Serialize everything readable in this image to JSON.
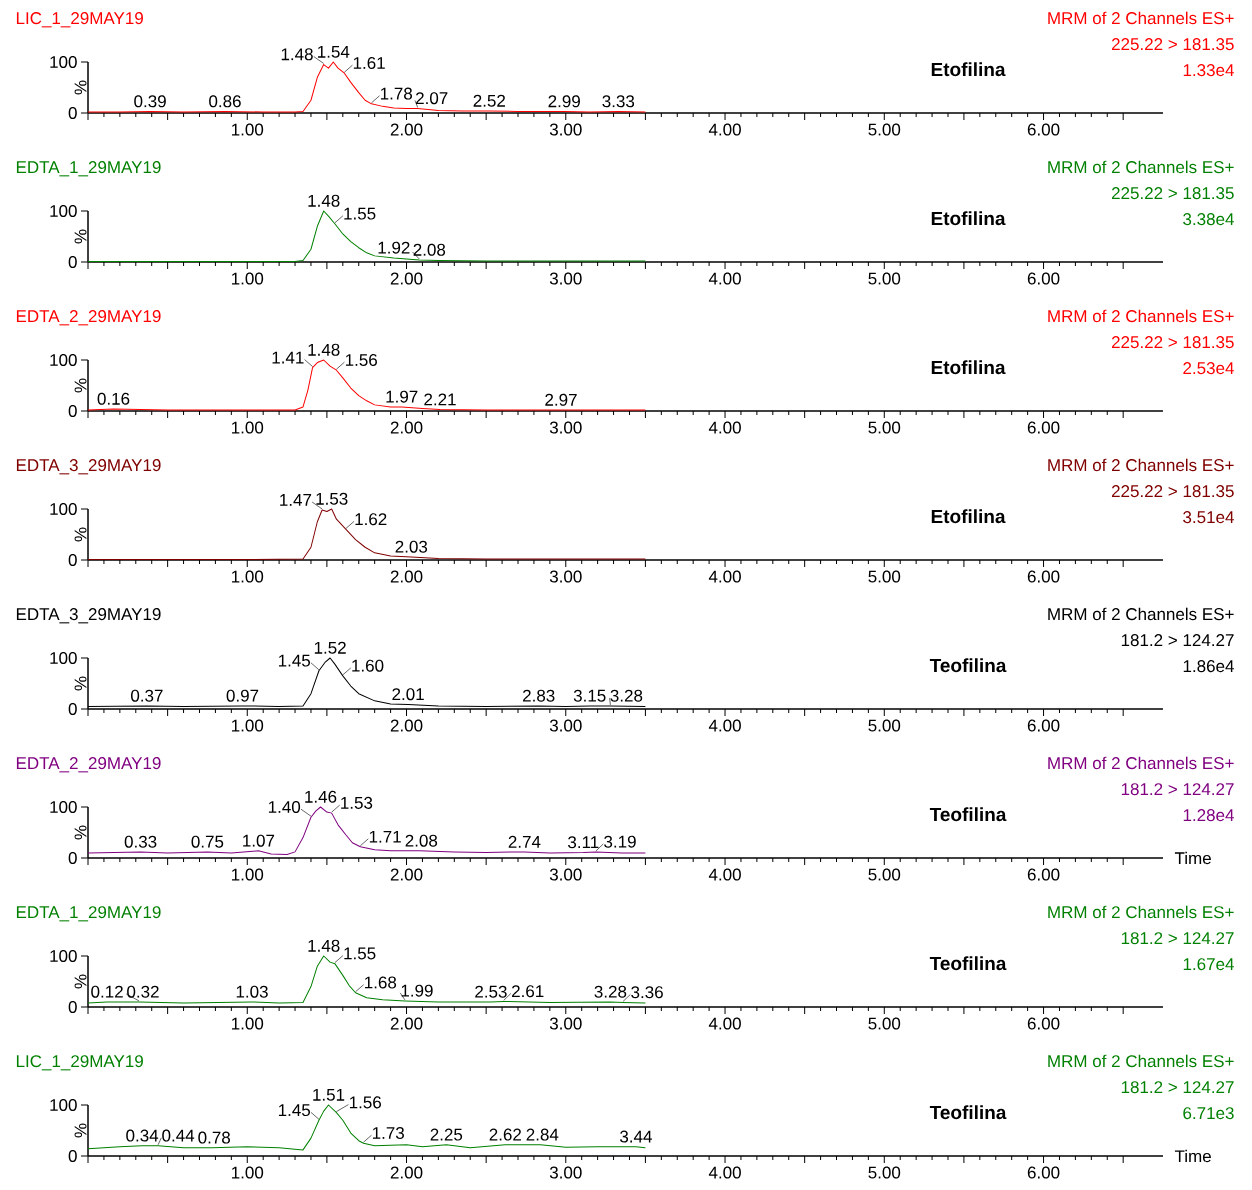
{
  "chart_data": [
    {
      "type": "line",
      "title": "LIC_1_29MAY19",
      "subtitle": "MRM of 2 Channels ES+",
      "ylabel": "%",
      "xlim": [
        0,
        6.75
      ],
      "ylim": [
        0,
        100
      ],
      "yticks": [
        0,
        100
      ],
      "xticks": [
        {
          "value": 0,
          "label": null
        },
        {
          "value": 0.5,
          "label": null
        },
        {
          "value": 1,
          "label": "1.00"
        },
        {
          "value": 1.5,
          "label": null
        },
        {
          "value": 2,
          "label": "2.00"
        },
        {
          "value": 2.5,
          "label": null
        },
        {
          "value": 3,
          "label": "3.00"
        },
        {
          "value": 3.5,
          "label": null
        },
        {
          "value": 4,
          "label": "4.00"
        },
        {
          "value": 4.5,
          "label": null
        },
        {
          "value": 5,
          "label": "5.00"
        },
        {
          "value": 5.5,
          "label": null
        },
        {
          "value": 6,
          "label": "6.00"
        },
        {
          "value": 6.5,
          "label": null
        }
      ],
      "series": [
        {
          "color": "#ff0000",
          "x": [
            0,
            0.2,
            0.39,
            0.6,
            0.86,
            1.1,
            1.3,
            1.35,
            1.4,
            1.44,
            1.48,
            1.51,
            1.54,
            1.57,
            1.61,
            1.65,
            1.7,
            1.74,
            1.78,
            1.85,
            1.92,
            2.0,
            2.07,
            2.2,
            2.35,
            2.52,
            2.7,
            2.99,
            3.15,
            3.33,
            3.5
          ],
          "values": [
            2,
            2,
            3,
            2,
            3,
            2,
            2,
            3,
            25,
            70,
            95,
            88,
            100,
            88,
            78,
            60,
            40,
            25,
            18,
            13,
            10,
            9,
            9,
            5,
            4,
            4,
            3,
            3,
            2,
            3,
            2
          ]
        }
      ],
      "annotations": [
        "225.22 > 181.35",
        "1.33e4",
        "Etofilina",
        {
          "text": "0.39",
          "x": 0.39,
          "y": 3
        },
        {
          "text": "0.86",
          "x": 0.86,
          "y": 3
        },
        {
          "text": "1.48",
          "x": 1.48,
          "y": 95
        },
        {
          "text": "1.54",
          "x": 1.54,
          "y": 100
        },
        {
          "text": "1.61",
          "x": 1.61,
          "y": 78
        },
        {
          "text": "1.78",
          "x": 1.78,
          "y": 18
        },
        {
          "text": "2.07",
          "x": 2.07,
          "y": 9
        },
        {
          "text": "2.52",
          "x": 2.52,
          "y": 4
        },
        {
          "text": "2.99",
          "x": 2.99,
          "y": 3
        },
        {
          "text": "3.33",
          "x": 3.33,
          "y": 3
        }
      ]
    },
    {
      "type": "line",
      "title": "EDTA_1_29MAY19",
      "subtitle": "MRM of 2 Channels ES+",
      "ylabel": "%",
      "xlim": [
        0,
        6.75
      ],
      "ylim": [
        0,
        100
      ],
      "yticks": [
        0,
        100
      ],
      "xticks": [
        {
          "value": 0,
          "label": null
        },
        {
          "value": 0.5,
          "label": null
        },
        {
          "value": 1,
          "label": "1.00"
        },
        {
          "value": 1.5,
          "label": null
        },
        {
          "value": 2,
          "label": "2.00"
        },
        {
          "value": 2.5,
          "label": null
        },
        {
          "value": 3,
          "label": "3.00"
        },
        {
          "value": 3.5,
          "label": null
        },
        {
          "value": 4,
          "label": "4.00"
        },
        {
          "value": 4.5,
          "label": null
        },
        {
          "value": 5,
          "label": "5.00"
        },
        {
          "value": 5.5,
          "label": null
        },
        {
          "value": 6,
          "label": "6.00"
        },
        {
          "value": 6.5,
          "label": null
        }
      ],
      "series": [
        {
          "color": "#008000",
          "x": [
            0,
            0.5,
            1.0,
            1.3,
            1.35,
            1.4,
            1.44,
            1.48,
            1.51,
            1.55,
            1.6,
            1.65,
            1.7,
            1.75,
            1.8,
            1.92,
            2.0,
            2.08,
            2.2,
            2.5,
            3.0,
            3.5
          ],
          "values": [
            1,
            1,
            1,
            1,
            3,
            25,
            70,
            100,
            90,
            75,
            55,
            40,
            28,
            18,
            12,
            8,
            6,
            4,
            3,
            2,
            2,
            2
          ]
        }
      ],
      "annotations": [
        "225.22 > 181.35",
        "3.38e4",
        "Etofilina",
        {
          "text": "1.48",
          "x": 1.48,
          "y": 100
        },
        {
          "text": "1.55",
          "x": 1.55,
          "y": 75
        },
        {
          "text": "1.92",
          "x": 1.92,
          "y": 8
        },
        {
          "text": "2.08",
          "x": 2.08,
          "y": 4
        }
      ]
    },
    {
      "type": "line",
      "title": "EDTA_2_29MAY19",
      "subtitle": "MRM of 2 Channels ES+",
      "ylabel": "%",
      "xlim": [
        0,
        6.75
      ],
      "ylim": [
        0,
        100
      ],
      "yticks": [
        0,
        100
      ],
      "xticks": [
        {
          "value": 0,
          "label": null
        },
        {
          "value": 0.5,
          "label": null
        },
        {
          "value": 1,
          "label": "1.00"
        },
        {
          "value": 1.5,
          "label": null
        },
        {
          "value": 2,
          "label": "2.00"
        },
        {
          "value": 2.5,
          "label": null
        },
        {
          "value": 3,
          "label": "3.00"
        },
        {
          "value": 3.5,
          "label": null
        },
        {
          "value": 4,
          "label": "4.00"
        },
        {
          "value": 4.5,
          "label": null
        },
        {
          "value": 5,
          "label": "5.00"
        },
        {
          "value": 5.5,
          "label": null
        },
        {
          "value": 6,
          "label": "6.00"
        },
        {
          "value": 6.5,
          "label": null
        }
      ],
      "series": [
        {
          "color": "#ff0000",
          "x": [
            0,
            0.16,
            0.5,
            1.0,
            1.3,
            1.35,
            1.38,
            1.41,
            1.44,
            1.48,
            1.52,
            1.56,
            1.6,
            1.65,
            1.7,
            1.75,
            1.8,
            1.9,
            1.97,
            2.1,
            2.21,
            2.5,
            2.97,
            3.5
          ],
          "values": [
            2,
            4,
            2,
            2,
            2,
            8,
            40,
            85,
            95,
            100,
            88,
            80,
            65,
            45,
            30,
            20,
            12,
            8,
            8,
            5,
            3,
            2,
            2,
            2
          ]
        }
      ],
      "annotations": [
        "225.22 > 181.35",
        "2.53e4",
        "Etofilina",
        {
          "text": "0.16",
          "x": 0.16,
          "y": 4
        },
        {
          "text": "1.41",
          "x": 1.41,
          "y": 85
        },
        {
          "text": "1.48",
          "x": 1.48,
          "y": 100
        },
        {
          "text": "1.56",
          "x": 1.56,
          "y": 80
        },
        {
          "text": "1.97",
          "x": 1.97,
          "y": 8
        },
        {
          "text": "2.21",
          "x": 2.21,
          "y": 3
        },
        {
          "text": "2.97",
          "x": 2.97,
          "y": 2
        }
      ]
    },
    {
      "type": "line",
      "title": "EDTA_3_29MAY19",
      "subtitle": "MRM of 2 Channels ES+",
      "ylabel": "%",
      "xlim": [
        0,
        6.75
      ],
      "ylim": [
        0,
        100
      ],
      "yticks": [
        0,
        100
      ],
      "xticks": [
        {
          "value": 0,
          "label": null
        },
        {
          "value": 0.5,
          "label": null
        },
        {
          "value": 1,
          "label": "1.00"
        },
        {
          "value": 1.5,
          "label": null
        },
        {
          "value": 2,
          "label": "2.00"
        },
        {
          "value": 2.5,
          "label": null
        },
        {
          "value": 3,
          "label": "3.00"
        },
        {
          "value": 3.5,
          "label": null
        },
        {
          "value": 4,
          "label": "4.00"
        },
        {
          "value": 4.5,
          "label": null
        },
        {
          "value": 5,
          "label": "5.00"
        },
        {
          "value": 5.5,
          "label": null
        },
        {
          "value": 6,
          "label": "6.00"
        },
        {
          "value": 6.5,
          "label": null
        }
      ],
      "series": [
        {
          "color": "#800000",
          "x": [
            0,
            0.5,
            1.0,
            1.35,
            1.4,
            1.44,
            1.47,
            1.5,
            1.53,
            1.56,
            1.62,
            1.68,
            1.74,
            1.8,
            1.9,
            2.03,
            2.2,
            2.5,
            3.0,
            3.5
          ],
          "values": [
            1,
            1,
            1,
            2,
            25,
            75,
            98,
            95,
            100,
            80,
            60,
            40,
            25,
            14,
            8,
            6,
            3,
            2,
            2,
            2
          ]
        }
      ],
      "annotations": [
        "225.22 > 181.35",
        "3.51e4",
        "Etofilina",
        {
          "text": "1.47",
          "x": 1.47,
          "y": 98
        },
        {
          "text": "1.53",
          "x": 1.53,
          "y": 100
        },
        {
          "text": "1.62",
          "x": 1.62,
          "y": 60
        },
        {
          "text": "2.03",
          "x": 2.03,
          "y": 6
        }
      ]
    },
    {
      "type": "line",
      "title": "EDTA_3_29MAY19",
      "subtitle": "MRM of 2 Channels ES+",
      "ylabel": "%",
      "xlim": [
        0,
        6.75
      ],
      "ylim": [
        0,
        100
      ],
      "yticks": [
        0,
        100
      ],
      "xticks": [
        {
          "value": 0,
          "label": null
        },
        {
          "value": 0.5,
          "label": null
        },
        {
          "value": 1,
          "label": "1.00"
        },
        {
          "value": 1.5,
          "label": null
        },
        {
          "value": 2,
          "label": "2.00"
        },
        {
          "value": 2.5,
          "label": null
        },
        {
          "value": 3,
          "label": "3.00"
        },
        {
          "value": 3.5,
          "label": null
        },
        {
          "value": 4,
          "label": "4.00"
        },
        {
          "value": 4.5,
          "label": null
        },
        {
          "value": 5,
          "label": "5.00"
        },
        {
          "value": 5.5,
          "label": null
        },
        {
          "value": 6,
          "label": "6.00"
        },
        {
          "value": 6.5,
          "label": null
        }
      ],
      "series": [
        {
          "color": "#000000",
          "x": [
            0,
            0.37,
            0.6,
            0.97,
            1.2,
            1.35,
            1.4,
            1.45,
            1.49,
            1.52,
            1.55,
            1.6,
            1.65,
            1.7,
            1.8,
            1.9,
            2.01,
            2.2,
            2.5,
            2.83,
            3.0,
            3.15,
            3.28,
            3.5
          ],
          "values": [
            5,
            6,
            5,
            6,
            5,
            6,
            30,
            75,
            92,
            100,
            88,
            65,
            45,
            30,
            16,
            10,
            9,
            6,
            5,
            6,
            5,
            6,
            6,
            5
          ]
        }
      ],
      "annotations": [
        "181.2 > 124.27",
        "1.86e4",
        "Teofilina",
        {
          "text": "0.37",
          "x": 0.37,
          "y": 6
        },
        {
          "text": "0.97",
          "x": 0.97,
          "y": 6
        },
        {
          "text": "1.45",
          "x": 1.45,
          "y": 75
        },
        {
          "text": "1.52",
          "x": 1.52,
          "y": 100
        },
        {
          "text": "1.60",
          "x": 1.6,
          "y": 65
        },
        {
          "text": "2.01",
          "x": 2.01,
          "y": 9
        },
        {
          "text": "2.83",
          "x": 2.83,
          "y": 6
        },
        {
          "text": "3.15",
          "x": 3.15,
          "y": 6
        },
        {
          "text": "3.28",
          "x": 3.28,
          "y": 6
        }
      ]
    },
    {
      "type": "line",
      "title": "EDTA_2_29MAY19",
      "subtitle": "MRM of 2 Channels ES+",
      "xlabel": "Time",
      "ylabel": "%",
      "xlim": [
        0,
        6.75
      ],
      "ylim": [
        0,
        100
      ],
      "yticks": [
        0,
        100
      ],
      "xticks": [
        {
          "value": 0,
          "label": null
        },
        {
          "value": 0.5,
          "label": null
        },
        {
          "value": 1,
          "label": "1.00"
        },
        {
          "value": 1.5,
          "label": null
        },
        {
          "value": 2,
          "label": "2.00"
        },
        {
          "value": 2.5,
          "label": null
        },
        {
          "value": 3,
          "label": "3.00"
        },
        {
          "value": 3.5,
          "label": null
        },
        {
          "value": 4,
          "label": "4.00"
        },
        {
          "value": 4.5,
          "label": null
        },
        {
          "value": 5,
          "label": "5.00"
        },
        {
          "value": 5.5,
          "label": null
        },
        {
          "value": 6,
          "label": "6.00"
        },
        {
          "value": 6.5,
          "label": null
        }
      ],
      "series": [
        {
          "color": "#800080",
          "x": [
            0,
            0.33,
            0.5,
            0.75,
            0.9,
            1.07,
            1.15,
            1.25,
            1.3,
            1.35,
            1.4,
            1.43,
            1.46,
            1.5,
            1.53,
            1.57,
            1.62,
            1.66,
            1.71,
            1.8,
            1.9,
            2.08,
            2.3,
            2.5,
            2.74,
            2.9,
            3.11,
            3.19,
            3.35,
            3.5
          ],
          "values": [
            10,
            12,
            10,
            12,
            10,
            14,
            8,
            7,
            12,
            40,
            80,
            92,
            100,
            90,
            88,
            65,
            45,
            30,
            22,
            16,
            14,
            14,
            12,
            11,
            12,
            10,
            11,
            12,
            10,
            10
          ]
        }
      ],
      "annotations": [
        "181.2 > 124.27",
        "1.28e4",
        "Teofilina",
        {
          "text": "0.33",
          "x": 0.33,
          "y": 12
        },
        {
          "text": "0.75",
          "x": 0.75,
          "y": 12
        },
        {
          "text": "1.07",
          "x": 1.07,
          "y": 14
        },
        {
          "text": "1.40",
          "x": 1.4,
          "y": 80
        },
        {
          "text": "1.46",
          "x": 1.46,
          "y": 100
        },
        {
          "text": "1.53",
          "x": 1.53,
          "y": 88
        },
        {
          "text": "1.71",
          "x": 1.71,
          "y": 22
        },
        {
          "text": "2.08",
          "x": 2.08,
          "y": 14
        },
        {
          "text": "2.74",
          "x": 2.74,
          "y": 12
        },
        {
          "text": "3.11",
          "x": 3.11,
          "y": 11
        },
        {
          "text": "3.19",
          "x": 3.19,
          "y": 12
        }
      ]
    },
    {
      "type": "line",
      "title": "EDTA_1_29MAY19",
      "subtitle": "MRM of 2 Channels ES+",
      "ylabel": "%",
      "xlim": [
        0,
        6.75
      ],
      "ylim": [
        0,
        100
      ],
      "yticks": [
        0,
        100
      ],
      "xticks": [
        {
          "value": 0,
          "label": null
        },
        {
          "value": 0.5,
          "label": null
        },
        {
          "value": 1,
          "label": "1.00"
        },
        {
          "value": 1.5,
          "label": null
        },
        {
          "value": 2,
          "label": "2.00"
        },
        {
          "value": 2.5,
          "label": null
        },
        {
          "value": 3,
          "label": "3.00"
        },
        {
          "value": 3.5,
          "label": null
        },
        {
          "value": 4,
          "label": "4.00"
        },
        {
          "value": 4.5,
          "label": null
        },
        {
          "value": 5,
          "label": "5.00"
        },
        {
          "value": 5.5,
          "label": null
        },
        {
          "value": 6,
          "label": "6.00"
        },
        {
          "value": 6.5,
          "label": null
        }
      ],
      "series": [
        {
          "color": "#008000",
          "x": [
            0,
            0.12,
            0.32,
            0.6,
            1.03,
            1.2,
            1.35,
            1.4,
            1.44,
            1.48,
            1.52,
            1.55,
            1.6,
            1.64,
            1.68,
            1.75,
            1.85,
            1.99,
            2.2,
            2.53,
            2.61,
            2.9,
            3.28,
            3.36,
            3.5
          ],
          "values": [
            8,
            10,
            10,
            8,
            10,
            8,
            9,
            40,
            80,
            100,
            88,
            85,
            62,
            42,
            28,
            18,
            14,
            12,
            10,
            10,
            11,
            9,
            10,
            9,
            8
          ]
        }
      ],
      "annotations": [
        "181.2 > 124.27",
        "1.67e4",
        "Teofilina",
        {
          "text": "0.12",
          "x": 0.12,
          "y": 10
        },
        {
          "text": "0.32",
          "x": 0.32,
          "y": 10
        },
        {
          "text": "1.03",
          "x": 1.03,
          "y": 10
        },
        {
          "text": "1.48",
          "x": 1.48,
          "y": 100
        },
        {
          "text": "1.55",
          "x": 1.55,
          "y": 85
        },
        {
          "text": "1.68",
          "x": 1.68,
          "y": 28
        },
        {
          "text": "1.99",
          "x": 1.99,
          "y": 12
        },
        {
          "text": "2.53",
          "x": 2.53,
          "y": 10
        },
        {
          "text": "2.61",
          "x": 2.61,
          "y": 11
        },
        {
          "text": "3.28",
          "x": 3.28,
          "y": 10
        },
        {
          "text": "3.36",
          "x": 3.36,
          "y": 9
        }
      ]
    },
    {
      "type": "line",
      "title": "LIC_1_29MAY19",
      "subtitle": "MRM of 2 Channels ES+",
      "xlabel": "Time",
      "ylabel": "%",
      "xlim": [
        0,
        6.75
      ],
      "ylim": [
        0,
        100
      ],
      "yticks": [
        0,
        100
      ],
      "xticks": [
        {
          "value": 0,
          "label": null
        },
        {
          "value": 0.5,
          "label": null
        },
        {
          "value": 1,
          "label": "1.00"
        },
        {
          "value": 1.5,
          "label": null
        },
        {
          "value": 2,
          "label": "2.00"
        },
        {
          "value": 2.5,
          "label": null
        },
        {
          "value": 3,
          "label": "3.00"
        },
        {
          "value": 3.5,
          "label": null
        },
        {
          "value": 4,
          "label": "4.00"
        },
        {
          "value": 4.5,
          "label": null
        },
        {
          "value": 5,
          "label": "5.00"
        },
        {
          "value": 5.5,
          "label": null
        },
        {
          "value": 6,
          "label": "6.00"
        },
        {
          "value": 6.5,
          "label": null
        }
      ],
      "series": [
        {
          "color": "#008000",
          "x": [
            0,
            0.2,
            0.34,
            0.44,
            0.6,
            0.78,
            1.0,
            1.2,
            1.35,
            1.4,
            1.45,
            1.48,
            1.51,
            1.56,
            1.6,
            1.65,
            1.7,
            1.73,
            1.8,
            2.0,
            2.1,
            2.25,
            2.4,
            2.62,
            2.84,
            3.0,
            3.2,
            3.44,
            3.5
          ],
          "values": [
            14,
            18,
            20,
            20,
            16,
            16,
            18,
            16,
            12,
            35,
            70,
            88,
            100,
            85,
            70,
            45,
            30,
            25,
            20,
            22,
            18,
            22,
            16,
            22,
            22,
            17,
            18,
            18,
            16
          ]
        }
      ],
      "annotations": [
        "181.2 > 124.27",
        "6.71e3",
        "Teofilina",
        {
          "text": "0.34",
          "x": 0.34,
          "y": 20
        },
        {
          "text": "0.44",
          "x": 0.44,
          "y": 20
        },
        {
          "text": "0.78",
          "x": 0.78,
          "y": 16
        },
        {
          "text": "1.45",
          "x": 1.45,
          "y": 70
        },
        {
          "text": "1.51",
          "x": 1.51,
          "y": 100
        },
        {
          "text": "1.56",
          "x": 1.56,
          "y": 85
        },
        {
          "text": "1.73",
          "x": 1.73,
          "y": 25
        },
        {
          "text": "2.25",
          "x": 2.25,
          "y": 22
        },
        {
          "text": "2.62",
          "x": 2.62,
          "y": 22
        },
        {
          "text": "2.84",
          "x": 2.84,
          "y": 22
        },
        {
          "text": "3.44",
          "x": 3.44,
          "y": 18
        }
      ]
    }
  ]
}
